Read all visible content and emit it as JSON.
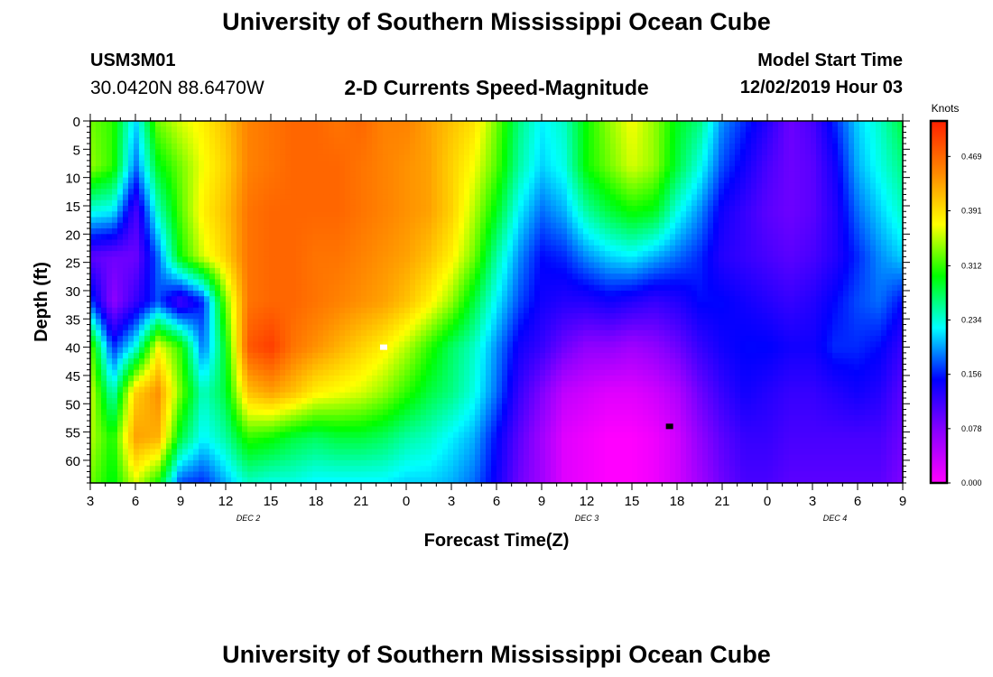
{
  "page": {
    "title_top": "University of Southern Mississippi Ocean Cube",
    "title_bottom": "University of Southern Mississippi Ocean Cube",
    "station_id": "USM3M01",
    "station_coords": "30.0420N 88.6470W",
    "model_start_label": "Model Start Time",
    "model_start_value": "12/02/2019 Hour 03"
  },
  "chart_data": {
    "type": "heatmap",
    "title": "2-D Currents Speed-Magnitude",
    "xlabel": "Forecast Time(Z)",
    "ylabel": "Depth (ft)",
    "x_tick_labels": [
      "3",
      "6",
      "9",
      "12",
      "15",
      "18",
      "21",
      "0",
      "3",
      "6",
      "9",
      "12",
      "15",
      "18",
      "21",
      "0",
      "3",
      "6",
      "9"
    ],
    "x_range_hours": [
      0,
      54
    ],
    "date_labels": [
      {
        "text": "DEC 2",
        "at_hour": 10.5
      },
      {
        "text": "DEC 3",
        "at_hour": 33
      },
      {
        "text": "DEC 4",
        "at_hour": 49.5
      }
    ],
    "y_ticks": [
      0,
      5,
      10,
      15,
      20,
      25,
      30,
      35,
      40,
      45,
      50,
      55,
      60
    ],
    "ylim": [
      0,
      64
    ],
    "y_inverted": true,
    "colorbar": {
      "unit": "Knots",
      "ticks": [
        "0.000",
        "0.078",
        "0.156",
        "0.234",
        "0.312",
        "0.391",
        "0.469"
      ],
      "range": [
        0,
        0.52
      ],
      "colors": [
        "#ff00ff",
        "#8a00ff",
        "#0000ff",
        "#00ffff",
        "#00ff00",
        "#ffff00",
        "#ff8800",
        "#ff2000"
      ]
    },
    "grid_hours": [
      0,
      1.5,
      3,
      4.5,
      6,
      7.5,
      9,
      10.5,
      12,
      13.5,
      15,
      16.5,
      18,
      19.5,
      21,
      22.5,
      24,
      25.5,
      27,
      28.5,
      30,
      31.5,
      33,
      34.5,
      36,
      37.5,
      39,
      40.5,
      42,
      43.5,
      45,
      46.5,
      48,
      49.5,
      51,
      52.5,
      54
    ],
    "grid_depths": [
      0,
      8,
      16,
      24,
      32,
      40,
      48,
      56,
      64
    ],
    "values": [
      [
        0.33,
        0.31,
        0.21,
        0.33,
        0.36,
        0.38,
        0.41,
        0.45,
        0.46,
        0.47,
        0.47,
        0.46,
        0.47,
        0.45,
        0.45,
        0.43,
        0.41,
        0.39,
        0.33,
        0.26,
        0.22,
        0.24,
        0.3,
        0.34,
        0.37,
        0.34,
        0.29,
        0.26,
        0.19,
        0.16,
        0.13,
        0.09,
        0.11,
        0.16,
        0.21,
        0.24,
        0.28
      ],
      [
        0.34,
        0.31,
        0.18,
        0.29,
        0.33,
        0.37,
        0.4,
        0.45,
        0.46,
        0.47,
        0.47,
        0.47,
        0.46,
        0.45,
        0.44,
        0.43,
        0.4,
        0.37,
        0.32,
        0.25,
        0.21,
        0.23,
        0.3,
        0.33,
        0.36,
        0.34,
        0.28,
        0.23,
        0.17,
        0.14,
        0.11,
        0.09,
        0.1,
        0.14,
        0.2,
        0.23,
        0.26
      ],
      [
        0.23,
        0.22,
        0.11,
        0.24,
        0.32,
        0.38,
        0.41,
        0.46,
        0.47,
        0.47,
        0.47,
        0.47,
        0.46,
        0.45,
        0.44,
        0.43,
        0.4,
        0.35,
        0.29,
        0.22,
        0.18,
        0.2,
        0.25,
        0.28,
        0.3,
        0.29,
        0.23,
        0.19,
        0.14,
        0.12,
        0.1,
        0.09,
        0.1,
        0.13,
        0.18,
        0.21,
        0.24
      ],
      [
        0.1,
        0.09,
        0.09,
        0.18,
        0.3,
        0.36,
        0.4,
        0.46,
        0.47,
        0.47,
        0.46,
        0.46,
        0.45,
        0.44,
        0.43,
        0.41,
        0.38,
        0.33,
        0.25,
        0.19,
        0.15,
        0.16,
        0.19,
        0.21,
        0.22,
        0.2,
        0.18,
        0.16,
        0.13,
        0.12,
        0.11,
        0.1,
        0.11,
        0.13,
        0.16,
        0.19,
        0.21
      ],
      [
        0.17,
        0.07,
        0.12,
        0.17,
        0.11,
        0.16,
        0.33,
        0.46,
        0.47,
        0.47,
        0.46,
        0.45,
        0.44,
        0.43,
        0.41,
        0.38,
        0.34,
        0.28,
        0.22,
        0.17,
        0.14,
        0.13,
        0.13,
        0.14,
        0.13,
        0.12,
        0.13,
        0.15,
        0.15,
        0.14,
        0.13,
        0.12,
        0.13,
        0.15,
        0.17,
        0.18,
        0.15
      ],
      [
        0.33,
        0.16,
        0.23,
        0.37,
        0.31,
        0.18,
        0.29,
        0.48,
        0.5,
        0.46,
        0.44,
        0.42,
        0.4,
        0.38,
        0.35,
        0.31,
        0.27,
        0.24,
        0.19,
        0.14,
        0.12,
        0.09,
        0.07,
        0.07,
        0.06,
        0.07,
        0.09,
        0.12,
        0.14,
        0.15,
        0.15,
        0.14,
        0.14,
        0.16,
        0.16,
        0.15,
        0.12
      ],
      [
        0.36,
        0.24,
        0.4,
        0.44,
        0.33,
        0.24,
        0.28,
        0.41,
        0.43,
        0.41,
        0.38,
        0.37,
        0.36,
        0.34,
        0.31,
        0.28,
        0.26,
        0.23,
        0.18,
        0.12,
        0.08,
        0.04,
        0.03,
        0.02,
        0.02,
        0.03,
        0.05,
        0.09,
        0.12,
        0.14,
        0.13,
        0.12,
        0.12,
        0.13,
        0.14,
        0.13,
        0.1
      ],
      [
        0.35,
        0.3,
        0.43,
        0.42,
        0.28,
        0.22,
        0.25,
        0.31,
        0.3,
        0.28,
        0.27,
        0.28,
        0.28,
        0.27,
        0.25,
        0.24,
        0.22,
        0.2,
        0.15,
        0.1,
        0.06,
        0.02,
        0.01,
        0.0,
        0.0,
        0.01,
        0.03,
        0.07,
        0.1,
        0.12,
        0.12,
        0.11,
        0.11,
        0.11,
        0.11,
        0.11,
        0.09
      ],
      [
        0.33,
        0.29,
        0.36,
        0.3,
        0.17,
        0.16,
        0.2,
        0.24,
        0.23,
        0.23,
        0.22,
        0.22,
        0.22,
        0.22,
        0.21,
        0.21,
        0.2,
        0.18,
        0.14,
        0.09,
        0.06,
        0.02,
        0.01,
        0.0,
        0.0,
        0.01,
        0.03,
        0.06,
        0.09,
        0.11,
        0.11,
        0.1,
        0.1,
        0.1,
        0.1,
        0.1,
        0.08
      ]
    ],
    "markers": [
      {
        "hour": 19.5,
        "depth": 40,
        "color": "#ffffff"
      },
      {
        "hour": 38.5,
        "depth": 54,
        "color": "#000000"
      }
    ]
  }
}
